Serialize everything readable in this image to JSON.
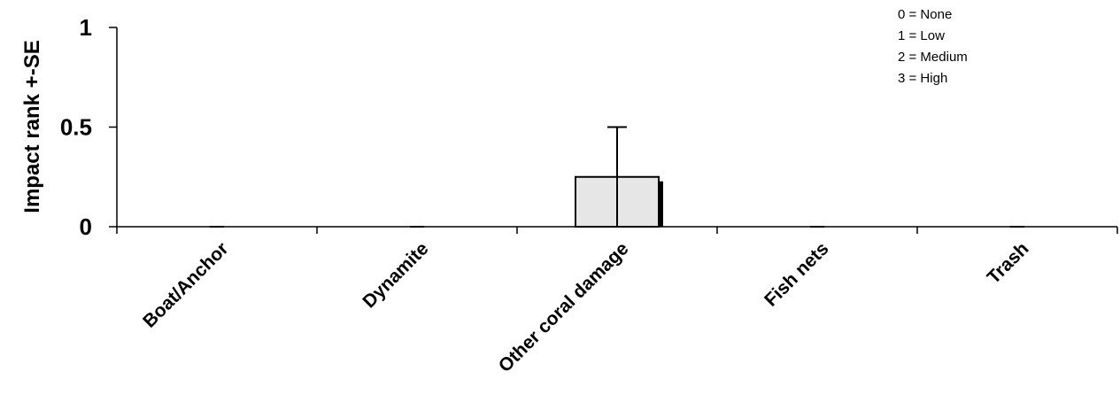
{
  "chart_data": {
    "type": "bar",
    "title": "",
    "xlabel": "",
    "ylabel": "Impact rank +-SE",
    "categories": [
      "Boat/Anchor",
      "Dynamite",
      "Other coral damage",
      "Fish nets",
      "Trash"
    ],
    "values": [
      0,
      0,
      0.25,
      0,
      0
    ],
    "errors": [
      0,
      0,
      0.25,
      0,
      0
    ],
    "ylim": [
      0,
      1
    ],
    "yticks": [
      "0",
      "0.5",
      "1"
    ],
    "grid": false,
    "legend": {
      "placement": "top-right",
      "entries": [
        "0 = None",
        "1 = Low",
        "2 = Medium",
        "3 = High"
      ]
    },
    "colors": {
      "bar_fill": "#e6e6e6",
      "bar_stroke": "#000000",
      "axis": "#000000"
    }
  }
}
